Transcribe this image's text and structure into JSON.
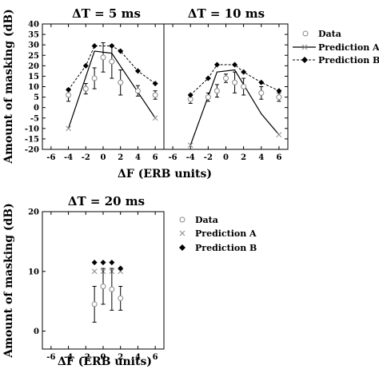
{
  "chart_data": [
    {
      "type": "line",
      "title": "ΔT = 5 ms",
      "xlabel": "ΔF (ERB units)",
      "ylabel": "Amount of masking (dB)",
      "xlim": [
        -7,
        7
      ],
      "ylim": [
        -20,
        40
      ],
      "xticks": [
        "-6",
        "-4",
        "-2",
        "0",
        "2",
        "4",
        "6"
      ],
      "yticks": [
        "-20",
        "-15",
        "-10",
        "-5",
        "0",
        "5",
        "10",
        "15",
        "20",
        "25",
        "30",
        "35",
        "40"
      ],
      "series": [
        {
          "name": "Data",
          "x": [
            -4,
            -2,
            -1,
            0,
            1,
            2,
            4,
            6
          ],
          "y": [
            6,
            9,
            14,
            24,
            22,
            12,
            8,
            6
          ],
          "err": [
            3,
            2.5,
            5,
            7,
            8,
            6,
            2.5,
            2
          ]
        },
        {
          "name": "Prediction A",
          "x": [
            -4,
            -1,
            1,
            6
          ],
          "y": [
            -10,
            27,
            26,
            -5
          ]
        },
        {
          "name": "Prediction B",
          "x": [
            -4,
            -2,
            -1,
            1,
            2,
            4,
            6
          ],
          "y": [
            8.5,
            20,
            29.5,
            29.5,
            27,
            17.5,
            11.5
          ]
        }
      ]
    },
    {
      "type": "line",
      "title": "ΔT = 10 ms",
      "xlabel": "ΔF (ERB units)",
      "xlim": [
        -7,
        7
      ],
      "ylim": [
        -20,
        40
      ],
      "xticks": [
        "-6",
        "-4",
        "-2",
        "0",
        "2",
        "4",
        "6"
      ],
      "series": [
        {
          "name": "Data",
          "x": [
            -4,
            -2,
            -1,
            0,
            1,
            2,
            4,
            6
          ],
          "y": [
            4,
            5,
            8,
            14,
            12,
            10,
            7,
            5
          ],
          "err": [
            2,
            2,
            3,
            2,
            5,
            4,
            3,
            2
          ]
        },
        {
          "name": "Prediction A",
          "x": [
            -4,
            -1,
            1,
            4,
            6
          ],
          "y": [
            -18,
            17,
            18,
            -3,
            -13
          ]
        },
        {
          "name": "Prediction B",
          "x": [
            -4,
            -2,
            -1,
            1,
            2,
            4,
            6
          ],
          "y": [
            6,
            14,
            20.5,
            20.5,
            17,
            12,
            8
          ]
        }
      ]
    },
    {
      "type": "scatter",
      "title": "ΔT = 20 ms",
      "xlabel": "ΔF (ERB units)",
      "ylabel": "Amount of masking (dB)",
      "xlim": [
        -7,
        7
      ],
      "ylim": [
        -3,
        20
      ],
      "xticks": [
        "-6",
        "-4",
        "-2",
        "0",
        "2",
        "4",
        "6"
      ],
      "yticks": [
        "0",
        "10",
        "20"
      ],
      "series": [
        {
          "name": "Data",
          "x": [
            -1,
            0,
            1,
            2
          ],
          "y": [
            4.5,
            7.5,
            7,
            5.5
          ],
          "err": [
            3,
            3,
            3.5,
            2
          ]
        },
        {
          "name": "Prediction A",
          "x": [
            -1,
            0,
            1,
            2
          ],
          "y": [
            10,
            10,
            10,
            10
          ]
        },
        {
          "name": "Prediction B",
          "x": [
            -1,
            0,
            1,
            2
          ],
          "y": [
            11.5,
            11.5,
            11.5,
            10.5
          ]
        }
      ]
    }
  ],
  "legend_labels": [
    "Data",
    "Prediction A",
    "Prediction B"
  ]
}
